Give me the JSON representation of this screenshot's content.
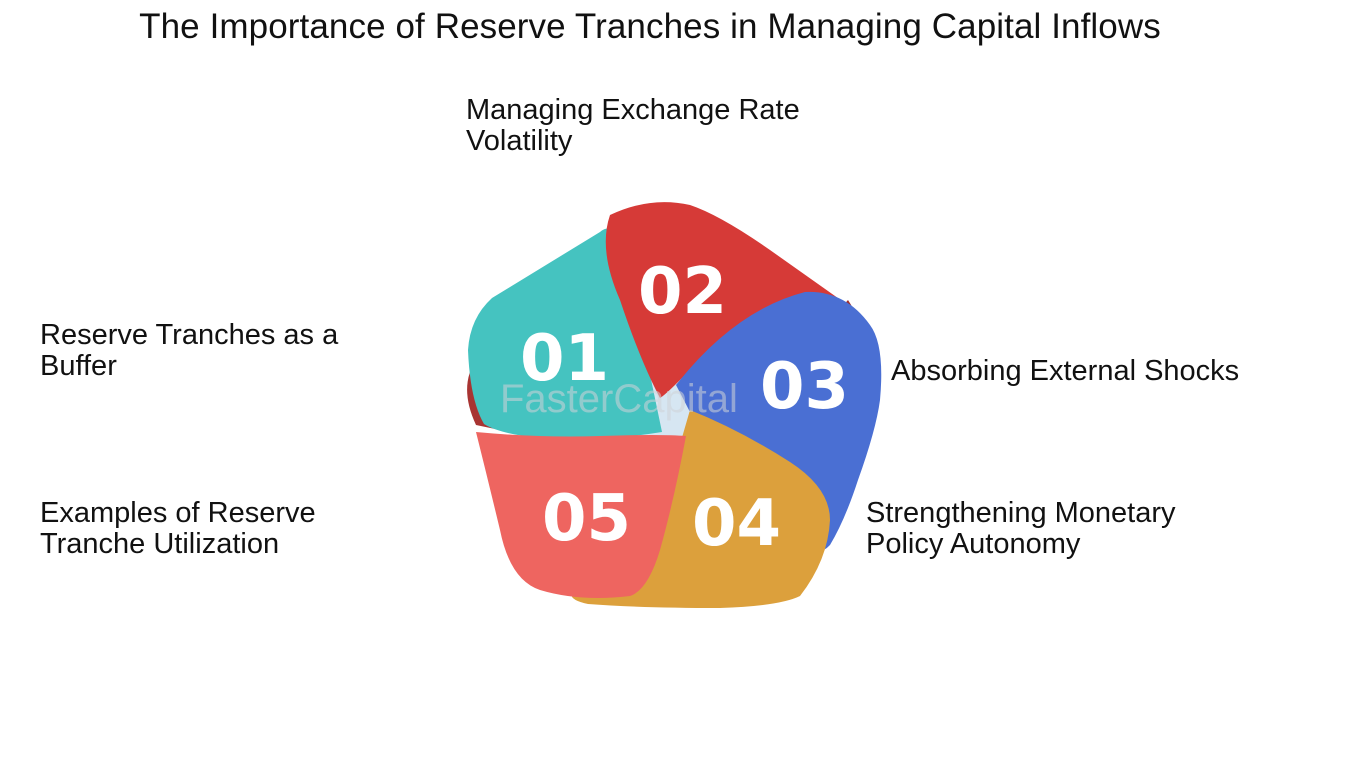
{
  "title": "The Importance of Reserve Tranches in Managing Capital Inflows",
  "segments": [
    {
      "number": "01",
      "label": "Reserve Tranches as a\nBuffer",
      "color": "#45c3c0"
    },
    {
      "number": "02",
      "label": "Managing Exchange Rate\nVolatility",
      "color": "#d63a37"
    },
    {
      "number": "03",
      "label": "Absorbing External Shocks",
      "color": "#4a6fd3"
    },
    {
      "number": "04",
      "label": "Strengthening Monetary\nPolicy Autonomy",
      "color": "#dca03c"
    },
    {
      "number": "05",
      "label": "Examples of Reserve\nTranche Utilization",
      "color": "#ee6560"
    }
  ],
  "watermark": "FasterCapital"
}
